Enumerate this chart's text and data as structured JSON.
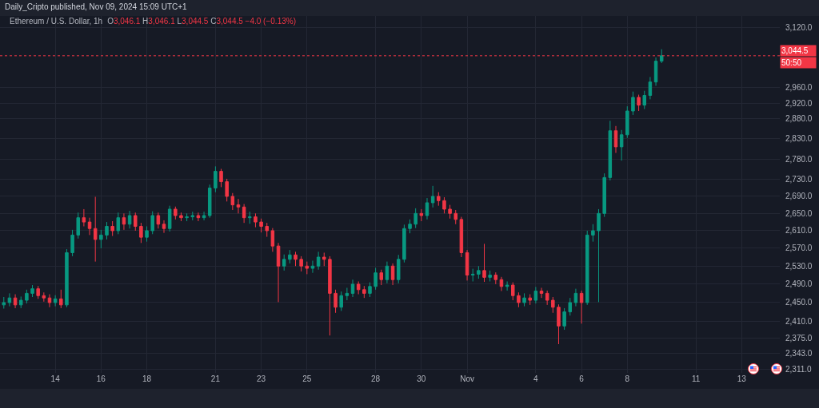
{
  "chart_data": {
    "type": "candlestick",
    "title": "Ethereum / U.S. Dollar, 1h",
    "subtitle": "Daily_Cripto published, Nov 09, 2024 15:09 UTC+1",
    "annotations": [
      "O3,046.1 H3,046.1 L3,044.5 C3,044.5 −4.0 (−0.13%)",
      "50:50"
    ],
    "log": "y",
    "grid": true,
    "xlim": [
      "2024-10-11T14:00",
      "2024-11-14T16:00"
    ],
    "ylim": [
      2303,
      3153
    ],
    "xticks": [
      {
        "value": "2024-10-14",
        "label": "14"
      },
      {
        "value": "2024-10-16",
        "label": "16"
      },
      {
        "value": "2024-10-18",
        "label": "18"
      },
      {
        "value": "2024-10-21",
        "label": "21"
      },
      {
        "value": "2024-10-23",
        "label": "23"
      },
      {
        "value": "2024-10-25",
        "label": "25"
      },
      {
        "value": "2024-10-28",
        "label": "28"
      },
      {
        "value": "2024-10-30",
        "label": "30"
      },
      {
        "value": "2024-11-01",
        "label": "Nov"
      },
      {
        "value": "2024-11-04",
        "label": "4"
      },
      {
        "value": "2024-11-06",
        "label": "6"
      },
      {
        "value": "2024-11-08",
        "label": "8"
      },
      {
        "value": "2024-11-11",
        "label": "11"
      },
      {
        "value": "2024-11-13",
        "label": "13"
      }
    ],
    "yticks": [
      {
        "value": 2311,
        "label": "2,311.0"
      },
      {
        "value": 2343,
        "label": "2,343.0"
      },
      {
        "value": 2375,
        "label": "2,375.0"
      },
      {
        "value": 2410,
        "label": "2,410.0"
      },
      {
        "value": 2450,
        "label": "2,450.0"
      },
      {
        "value": 2490,
        "label": "2,490.0"
      },
      {
        "value": 2530,
        "label": "2,530.0"
      },
      {
        "value": 2570,
        "label": "2,570.0"
      },
      {
        "value": 2610,
        "label": "2,610.0"
      },
      {
        "value": 2650,
        "label": "2,650.0"
      },
      {
        "value": 2690,
        "label": "2,690.0"
      },
      {
        "value": 2730,
        "label": "2,730.0"
      },
      {
        "value": 2780,
        "label": "2,780.0"
      },
      {
        "value": 2830,
        "label": "2,830.0"
      },
      {
        "value": 2880,
        "label": "2,880.0"
      },
      {
        "value": 2920,
        "label": "2,920.0"
      },
      {
        "value": 2960,
        "label": "2,960.0"
      },
      {
        "value": 3120,
        "label": "3,120.0"
      }
    ],
    "ref_lines": [
      {
        "axis": "y",
        "value": 3044.5,
        "label": "3,044.5",
        "color": "#f23645",
        "line_style": "dotted"
      }
    ],
    "x": [
      "2024-10-11T18:00",
      "2024-10-12T00:00",
      "2024-10-12T06:00",
      "2024-10-12T12:00",
      "2024-10-12T18:00",
      "2024-10-13T00:00",
      "2024-10-13T06:00",
      "2024-10-13T12:00",
      "2024-10-13T18:00",
      "2024-10-14T00:00",
      "2024-10-14T06:00",
      "2024-10-14T12:00",
      "2024-10-14T18:00",
      "2024-10-15T00:00",
      "2024-10-15T06:00",
      "2024-10-15T12:00",
      "2024-10-15T18:00",
      "2024-10-16T00:00",
      "2024-10-16T06:00",
      "2024-10-16T12:00",
      "2024-10-16T18:00",
      "2024-10-17T00:00",
      "2024-10-17T06:00",
      "2024-10-17T12:00",
      "2024-10-17T18:00",
      "2024-10-18T00:00",
      "2024-10-18T06:00",
      "2024-10-18T12:00",
      "2024-10-18T18:00",
      "2024-10-19T00:00",
      "2024-10-19T06:00",
      "2024-10-19T12:00",
      "2024-10-19T18:00",
      "2024-10-20T00:00",
      "2024-10-20T06:00",
      "2024-10-20T12:00",
      "2024-10-20T18:00",
      "2024-10-21T00:00",
      "2024-10-21T06:00",
      "2024-10-21T12:00",
      "2024-10-21T18:00",
      "2024-10-22T00:00",
      "2024-10-22T06:00",
      "2024-10-22T12:00",
      "2024-10-22T18:00",
      "2024-10-23T00:00",
      "2024-10-23T06:00",
      "2024-10-23T12:00",
      "2024-10-23T18:00",
      "2024-10-24T00:00",
      "2024-10-24T06:00",
      "2024-10-24T12:00",
      "2024-10-24T18:00",
      "2024-10-25T00:00",
      "2024-10-25T06:00",
      "2024-10-25T12:00",
      "2024-10-25T18:00",
      "2024-10-26T00:00",
      "2024-10-26T06:00",
      "2024-10-26T12:00",
      "2024-10-26T18:00",
      "2024-10-27T00:00",
      "2024-10-27T06:00",
      "2024-10-27T12:00",
      "2024-10-27T18:00",
      "2024-10-28T00:00",
      "2024-10-28T06:00",
      "2024-10-28T12:00",
      "2024-10-28T18:00",
      "2024-10-29T00:00",
      "2024-10-29T06:00",
      "2024-10-29T12:00",
      "2024-10-29T18:00",
      "2024-10-30T00:00",
      "2024-10-30T06:00",
      "2024-10-30T12:00",
      "2024-10-30T18:00",
      "2024-10-31T00:00",
      "2024-10-31T06:00",
      "2024-10-31T12:00",
      "2024-10-31T18:00",
      "2024-11-01T00:00",
      "2024-11-01T06:00",
      "2024-11-01T12:00",
      "2024-11-01T18:00",
      "2024-11-02T00:00",
      "2024-11-02T06:00",
      "2024-11-02T12:00",
      "2024-11-02T18:00",
      "2024-11-03T00:00",
      "2024-11-03T06:00",
      "2024-11-03T12:00",
      "2024-11-03T18:00",
      "2024-11-04T00:00",
      "2024-11-04T06:00",
      "2024-11-04T12:00",
      "2024-11-04T18:00",
      "2024-11-05T00:00",
      "2024-11-05T06:00",
      "2024-11-05T12:00",
      "2024-11-05T18:00",
      "2024-11-06T00:00",
      "2024-11-06T06:00",
      "2024-11-06T12:00",
      "2024-11-06T18:00",
      "2024-11-07T00:00",
      "2024-11-07T06:00",
      "2024-11-07T12:00",
      "2024-11-07T18:00",
      "2024-11-08T00:00",
      "2024-11-08T06:00",
      "2024-11-08T12:00",
      "2024-11-08T18:00",
      "2024-11-09T00:00",
      "2024-11-09T06:00",
      "2024-11-09T12:00"
    ],
    "ohlc": [
      [
        2445,
        2462,
        2437,
        2450
      ],
      [
        2450,
        2470,
        2442,
        2460
      ],
      [
        2460,
        2468,
        2438,
        2445
      ],
      [
        2445,
        2463,
        2438,
        2455
      ],
      [
        2455,
        2478,
        2448,
        2470
      ],
      [
        2470,
        2488,
        2462,
        2480
      ],
      [
        2480,
        2486,
        2458,
        2465
      ],
      [
        2465,
        2472,
        2452,
        2460
      ],
      [
        2460,
        2468,
        2440,
        2450
      ],
      [
        2450,
        2466,
        2442,
        2458
      ],
      [
        2458,
        2478,
        2438,
        2445
      ],
      [
        2445,
        2568,
        2440,
        2560
      ],
      [
        2560,
        2612,
        2552,
        2600
      ],
      [
        2600,
        2652,
        2592,
        2640
      ],
      [
        2640,
        2660,
        2620,
        2630
      ],
      [
        2630,
        2640,
        2600,
        2615
      ],
      [
        2615,
        2689,
        2540,
        2590
      ],
      [
        2590,
        2612,
        2570,
        2600
      ],
      [
        2600,
        2630,
        2590,
        2620
      ],
      [
        2620,
        2632,
        2598,
        2610
      ],
      [
        2610,
        2652,
        2602,
        2640
      ],
      [
        2640,
        2650,
        2612,
        2625
      ],
      [
        2625,
        2656,
        2615,
        2645
      ],
      [
        2645,
        2652,
        2610,
        2620
      ],
      [
        2620,
        2628,
        2582,
        2595
      ],
      [
        2595,
        2620,
        2585,
        2610
      ],
      [
        2610,
        2655,
        2602,
        2645
      ],
      [
        2645,
        2652,
        2615,
        2625
      ],
      [
        2625,
        2634,
        2605,
        2615
      ],
      [
        2615,
        2668,
        2608,
        2660
      ],
      [
        2660,
        2666,
        2636,
        2645
      ],
      [
        2645,
        2652,
        2632,
        2640
      ],
      [
        2640,
        2650,
        2632,
        2642
      ],
      [
        2642,
        2654,
        2634,
        2645
      ],
      [
        2645,
        2652,
        2632,
        2640
      ],
      [
        2640,
        2654,
        2634,
        2645
      ],
      [
        2645,
        2718,
        2640,
        2710
      ],
      [
        2710,
        2762,
        2700,
        2750
      ],
      [
        2750,
        2756,
        2712,
        2725
      ],
      [
        2725,
        2732,
        2678,
        2690
      ],
      [
        2690,
        2698,
        2658,
        2670
      ],
      [
        2670,
        2684,
        2650,
        2665
      ],
      [
        2665,
        2672,
        2628,
        2640
      ],
      [
        2640,
        2654,
        2626,
        2642
      ],
      [
        2642,
        2650,
        2618,
        2630
      ],
      [
        2630,
        2638,
        2606,
        2620
      ],
      [
        2620,
        2628,
        2596,
        2610
      ],
      [
        2610,
        2616,
        2562,
        2575
      ],
      [
        2575,
        2582,
        2451,
        2530
      ],
      [
        2530,
        2556,
        2520,
        2545
      ],
      [
        2545,
        2566,
        2536,
        2555
      ],
      [
        2555,
        2562,
        2530,
        2545
      ],
      [
        2545,
        2552,
        2518,
        2530
      ],
      [
        2530,
        2540,
        2512,
        2525
      ],
      [
        2525,
        2542,
        2515,
        2530
      ],
      [
        2530,
        2562,
        2522,
        2550
      ],
      [
        2550,
        2560,
        2530,
        2545
      ],
      [
        2545,
        2552,
        2380,
        2470
      ],
      [
        2470,
        2478,
        2428,
        2440
      ],
      [
        2440,
        2474,
        2432,
        2465
      ],
      [
        2465,
        2482,
        2455,
        2470
      ],
      [
        2470,
        2500,
        2462,
        2490
      ],
      [
        2490,
        2496,
        2468,
        2478
      ],
      [
        2478,
        2486,
        2460,
        2470
      ],
      [
        2470,
        2494,
        2462,
        2485
      ],
      [
        2485,
        2526,
        2478,
        2515
      ],
      [
        2515,
        2522,
        2488,
        2500
      ],
      [
        2500,
        2540,
        2492,
        2530
      ],
      [
        2530,
        2536,
        2488,
        2500
      ],
      [
        2500,
        2555,
        2492,
        2545
      ],
      [
        2545,
        2624,
        2538,
        2615
      ],
      [
        2615,
        2636,
        2604,
        2625
      ],
      [
        2625,
        2662,
        2616,
        2650
      ],
      [
        2650,
        2660,
        2632,
        2645
      ],
      [
        2645,
        2686,
        2636,
        2675
      ],
      [
        2675,
        2715,
        2664,
        2690
      ],
      [
        2690,
        2700,
        2668,
        2680
      ],
      [
        2680,
        2688,
        2650,
        2660
      ],
      [
        2660,
        2670,
        2638,
        2650
      ],
      [
        2650,
        2658,
        2625,
        2636
      ],
      [
        2636,
        2642,
        2550,
        2560
      ],
      [
        2560,
        2566,
        2498,
        2510
      ],
      [
        2510,
        2524,
        2496,
        2512
      ],
      [
        2512,
        2530,
        2502,
        2520
      ],
      [
        2520,
        2580,
        2495,
        2505
      ],
      [
        2505,
        2520,
        2496,
        2510
      ],
      [
        2510,
        2516,
        2490,
        2500
      ],
      [
        2500,
        2506,
        2475,
        2485
      ],
      [
        2485,
        2496,
        2476,
        2488
      ],
      [
        2488,
        2494,
        2455,
        2465
      ],
      [
        2465,
        2472,
        2440,
        2450
      ],
      [
        2450,
        2470,
        2442,
        2460
      ],
      [
        2460,
        2468,
        2445,
        2455
      ],
      [
        2455,
        2484,
        2448,
        2475
      ],
      [
        2475,
        2482,
        2460,
        2470
      ],
      [
        2470,
        2476,
        2445,
        2455
      ],
      [
        2455,
        2462,
        2428,
        2440
      ],
      [
        2440,
        2446,
        2362,
        2400
      ],
      [
        2400,
        2438,
        2392,
        2430
      ],
      [
        2430,
        2460,
        2422,
        2450
      ],
      [
        2450,
        2480,
        2442,
        2470
      ],
      [
        2470,
        2476,
        2405,
        2450
      ],
      [
        2450,
        2610,
        2445,
        2600
      ],
      [
        2600,
        2625,
        2585,
        2610
      ],
      [
        2610,
        2660,
        2451,
        2650
      ],
      [
        2650,
        2745,
        2642,
        2735
      ],
      [
        2735,
        2875,
        2728,
        2850
      ],
      [
        2850,
        2862,
        2795,
        2810
      ],
      [
        2810,
        2852,
        2776,
        2840
      ],
      [
        2840,
        2912,
        2832,
        2900
      ],
      [
        2900,
        2950,
        2890,
        2935
      ],
      [
        2935,
        2942,
        2900,
        2915
      ],
      [
        2915,
        2952,
        2905,
        2940
      ],
      [
        2940,
        2988,
        2930,
        2975
      ],
      [
        2975,
        3040,
        2965,
        3030
      ],
      [
        3030,
        3062,
        3025,
        3044.5
      ]
    ]
  }
}
